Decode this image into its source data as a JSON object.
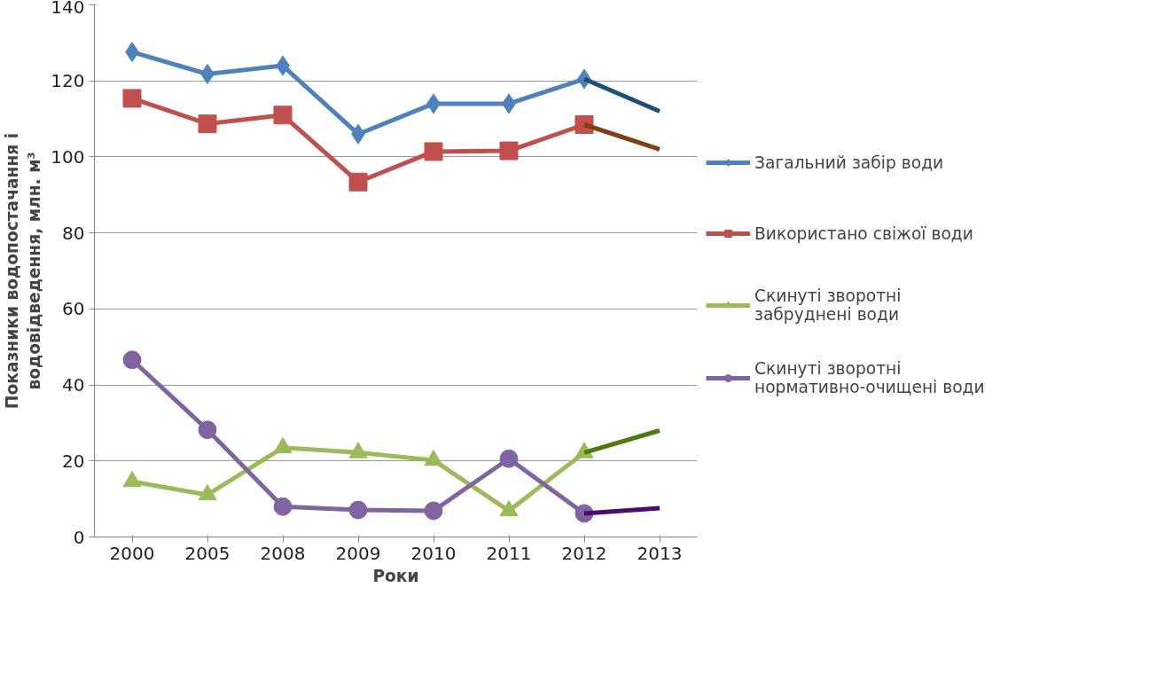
{
  "chart_data": {
    "type": "line",
    "xlabel": "Роки",
    "ylabel": "Показники водопостачання і\nводовідведення, млн. м³",
    "categories": [
      "2000",
      "2005",
      "2008",
      "2009",
      "2010",
      "2011",
      "2012",
      "2013"
    ],
    "ylim": [
      0,
      140
    ],
    "yticks": [
      0,
      20,
      40,
      60,
      80,
      100,
      120,
      140
    ],
    "grid": "y",
    "legend": "right",
    "series": [
      {
        "name": "Загальний забір води",
        "color": "#4f81bd",
        "marker": "diamond",
        "values": [
          127.6,
          121.8,
          124,
          106,
          114,
          114,
          120.5,
          null
        ]
      },
      {
        "name": "Використано свіжої води",
        "color": "#c0504d",
        "marker": "square",
        "values": [
          115.4,
          108.7,
          111,
          93.4,
          101.4,
          101.6,
          108.5,
          null
        ]
      },
      {
        "name": "Скинуті зворотні\nзабруднені води",
        "color": "#9bbb59",
        "marker": "triangle",
        "values": [
          14.6,
          11.1,
          23.5,
          22.2,
          20.2,
          6.9,
          22.2,
          null
        ]
      },
      {
        "name": "Скинуті зворотні\nнормативно-очищені води",
        "color": "#8064a2",
        "marker": "circle",
        "values": [
          46.6,
          28.2,
          8,
          7.1,
          6.9,
          20.6,
          6.2,
          null
        ]
      },
      {
        "color": "#1f4e79",
        "marker": "none",
        "values": [
          null,
          null,
          null,
          null,
          null,
          null,
          120.5,
          112
        ]
      },
      {
        "color": "#7f3f10",
        "marker": "none",
        "values": [
          null,
          null,
          null,
          null,
          null,
          null,
          108.5,
          102
        ]
      },
      {
        "color": "#4f7a10",
        "marker": "none",
        "values": [
          null,
          null,
          null,
          null,
          null,
          null,
          22.2,
          28
        ]
      },
      {
        "color": "#4b0a6e",
        "marker": "none",
        "values": [
          null,
          null,
          null,
          null,
          null,
          null,
          6.2,
          7.6
        ]
      }
    ]
  }
}
